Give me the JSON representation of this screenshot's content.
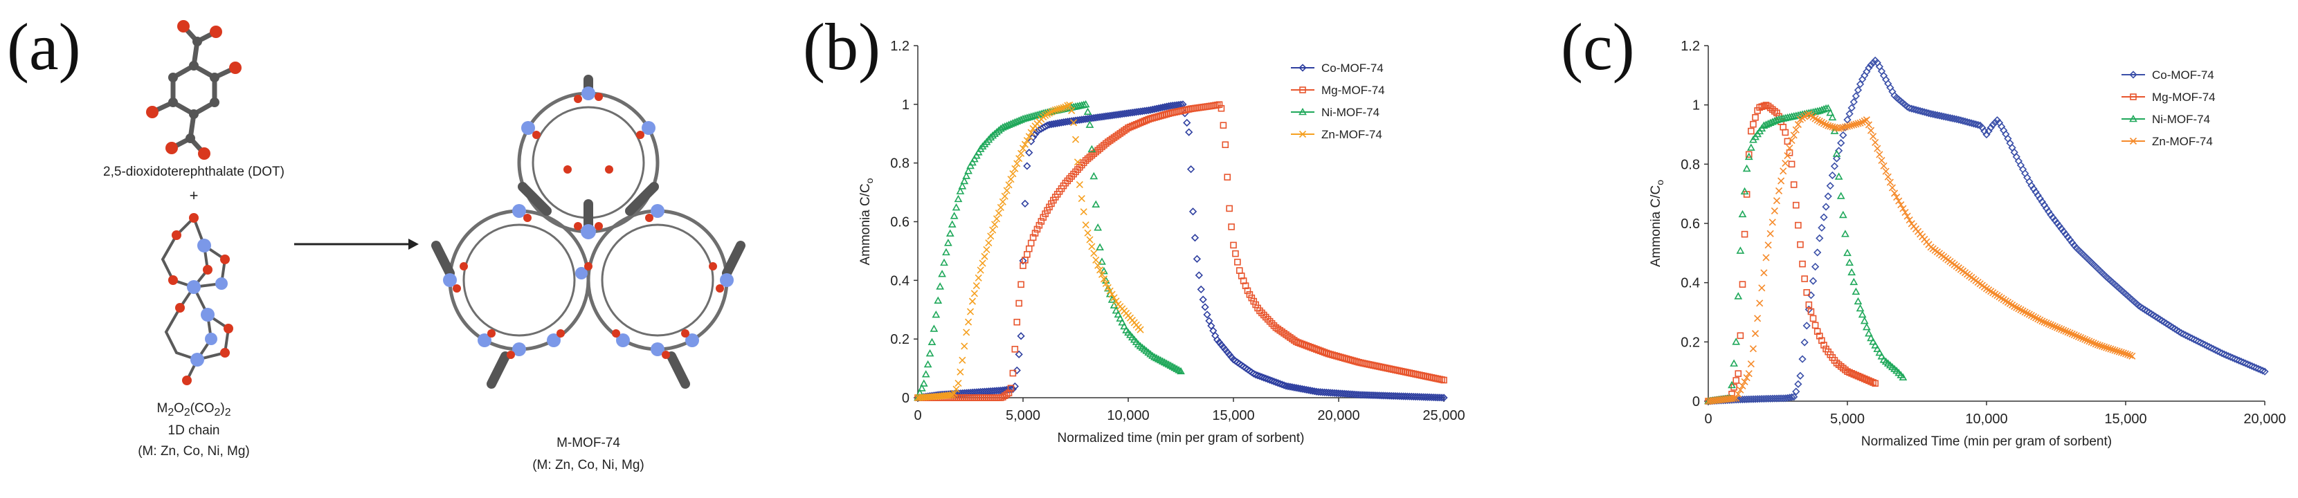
{
  "figure": {
    "panel_a": {
      "label": "(a)",
      "ligand_name": "2,5-dioxidoterephthalate (DOT)",
      "plus": "+",
      "chain_formula": "M2O2(CO2)2",
      "chain_formula_parts": {
        "m": "M",
        "s1": "2",
        "o": "O",
        "s2": "2",
        "co": "(CO",
        "s3": "2",
        "cl": ")",
        "s4": "2"
      },
      "chain_type": "1D chain",
      "chain_metals": "(M: Zn, Co, Ni, Mg)",
      "framework_name": "M-MOF-74",
      "framework_metals": "(M: Zn, Co, Ni, Mg)",
      "colors": {
        "oxygen": "#d9381e",
        "carbon": "#555555",
        "metal": "#7b98e8",
        "bond": "#5a5a5a"
      }
    },
    "panel_b": {
      "label": "(b)"
    },
    "panel_c": {
      "label": "(c)"
    }
  },
  "chart_data": [
    {
      "type": "line",
      "id": "b",
      "title": "",
      "xlabel": "Normalized time (min per gram of sorbent)",
      "ylabel": "Ammonia C/C",
      "ylabel_sub": "o",
      "xlim": [
        0,
        25000
      ],
      "ylim": [
        0,
        1.2
      ],
      "xticks": [
        0,
        5000,
        10000,
        15000,
        20000,
        25000
      ],
      "xtick_labels": [
        "0",
        "5,000",
        "10,000",
        "15,000",
        "20,000",
        "25,000"
      ],
      "yticks": [
        0,
        0.2,
        0.4,
        0.6,
        0.8,
        1,
        1.2
      ],
      "ytick_labels": [
        "0",
        "0.2",
        "0.4",
        "0.6",
        "0.8",
        "1",
        "1.2"
      ],
      "legend_position": "top-right",
      "series": [
        {
          "name": "Co-MOF-74",
          "color": "#2e3fa0",
          "marker": "diamond",
          "x": [
            0,
            1000,
            2000,
            3000,
            4000,
            4300,
            4600,
            4900,
            5050,
            5200,
            5400,
            5700,
            6200,
            7000,
            8000,
            9000,
            10000,
            11000,
            12000,
            12600,
            12900,
            13100,
            13300,
            13500,
            13800,
            14200,
            15000,
            16000,
            17500,
            19000,
            21000,
            23000,
            25000
          ],
          "y": [
            0,
            0.01,
            0.015,
            0.02,
            0.025,
            0.028,
            0.03,
            0.2,
            0.6,
            0.8,
            0.88,
            0.91,
            0.93,
            0.94,
            0.95,
            0.96,
            0.97,
            0.98,
            0.995,
            1.0,
            0.9,
            0.6,
            0.45,
            0.35,
            0.27,
            0.2,
            0.13,
            0.08,
            0.04,
            0.02,
            0.01,
            0.005,
            0.0
          ]
        },
        {
          "name": "Mg-MOF-74",
          "color": "#e8552d",
          "marker": "square",
          "x": [
            0,
            1000,
            2000,
            3000,
            4000,
            4400,
            4550,
            4700,
            5000,
            5500,
            6000,
            6500,
            7000,
            7500,
            8000,
            9000,
            10000,
            11000,
            12000,
            13000,
            14000,
            14400,
            14600,
            14800,
            15000,
            15300,
            15700,
            16200,
            17000,
            18000,
            19500,
            21000,
            23000,
            25000
          ],
          "y": [
            0,
            0,
            0,
            0,
            0,
            0.02,
            0.1,
            0.25,
            0.45,
            0.55,
            0.62,
            0.68,
            0.73,
            0.77,
            0.81,
            0.87,
            0.92,
            0.95,
            0.97,
            0.985,
            0.995,
            1.0,
            0.88,
            0.65,
            0.52,
            0.43,
            0.36,
            0.3,
            0.24,
            0.19,
            0.15,
            0.12,
            0.09,
            0.06
          ]
        },
        {
          "name": "Ni-MOF-74",
          "color": "#1fa85a",
          "marker": "triangle",
          "x": [
            0,
            300,
            500,
            700,
            900,
            1100,
            1300,
            1600,
            2000,
            2500,
            3000,
            3500,
            4000,
            5000,
            6000,
            7000,
            7700,
            8000,
            8150,
            8300,
            8500,
            8700,
            9000,
            9400,
            9900,
            10500,
            11200,
            12000,
            12500
          ],
          "y": [
            0,
            0.05,
            0.12,
            0.2,
            0.3,
            0.4,
            0.48,
            0.58,
            0.7,
            0.79,
            0.85,
            0.89,
            0.92,
            0.95,
            0.97,
            0.985,
            0.995,
            1.0,
            0.95,
            0.82,
            0.62,
            0.48,
            0.38,
            0.3,
            0.23,
            0.18,
            0.14,
            0.11,
            0.09
          ]
        },
        {
          "name": "Zn-MOF-74",
          "color": "#f5a020",
          "marker": "x",
          "x": [
            0,
            1000,
            1700,
            1900,
            2100,
            2300,
            2600,
            3000,
            3500,
            4000,
            4500,
            5000,
            5500,
            6000,
            6500,
            7000,
            7200,
            7350,
            7500,
            7700,
            8000,
            8500,
            9000,
            9500,
            10000,
            10600
          ],
          "y": [
            0,
            0.005,
            0.01,
            0.04,
            0.12,
            0.22,
            0.33,
            0.44,
            0.56,
            0.66,
            0.76,
            0.85,
            0.92,
            0.96,
            0.98,
            0.99,
            1.0,
            0.97,
            0.88,
            0.72,
            0.58,
            0.46,
            0.38,
            0.32,
            0.28,
            0.23
          ]
        }
      ]
    },
    {
      "type": "line",
      "id": "c",
      "title": "",
      "xlabel": "Normalized Time (min per gram of sorbent)",
      "ylabel": "Ammonia C/C",
      "ylabel_sub": "o",
      "xlim": [
        0,
        20000
      ],
      "ylim": [
        0,
        1.2
      ],
      "xticks": [
        0,
        5000,
        10000,
        15000,
        20000
      ],
      "xtick_labels": [
        "0",
        "5,000",
        "10,000",
        "15,000",
        "20,000"
      ],
      "yticks": [
        0,
        0.2,
        0.4,
        0.6,
        0.8,
        1,
        1.2
      ],
      "ytick_labels": [
        "0",
        "0.2",
        "0.4",
        "0.6",
        "0.8",
        "1",
        "1.2"
      ],
      "legend_position": "top-right",
      "series": [
        {
          "name": "Co-MOF-74",
          "color": "#3a4fa8",
          "marker": "diamond",
          "x": [
            0,
            1000,
            2000,
            2800,
            3100,
            3300,
            3600,
            4000,
            4500,
            5000,
            5500,
            5800,
            6000,
            6100,
            6300,
            6700,
            7200,
            8000,
            9000,
            9800,
            10000,
            10200,
            10400,
            10700,
            11100,
            11600,
            12300,
            13200,
            14300,
            15500,
            17000,
            18500,
            20000
          ],
          "y": [
            0,
            0.005,
            0.008,
            0.01,
            0.015,
            0.08,
            0.3,
            0.55,
            0.78,
            0.95,
            1.08,
            1.13,
            1.15,
            1.14,
            1.1,
            1.03,
            0.99,
            0.97,
            0.95,
            0.93,
            0.9,
            0.93,
            0.95,
            0.9,
            0.82,
            0.73,
            0.63,
            0.52,
            0.42,
            0.32,
            0.23,
            0.16,
            0.1
          ]
        },
        {
          "name": "Mg-MOF-74",
          "color": "#e8552d",
          "marker": "square",
          "x": [
            0,
            800,
            1100,
            1300,
            1500,
            1800,
            2100,
            2500,
            2800,
            3000,
            3200,
            3400,
            3600,
            3900,
            4200,
            4600,
            5000,
            5500,
            6000
          ],
          "y": [
            0,
            0.01,
            0.1,
            0.55,
            0.9,
            0.99,
            1.0,
            0.97,
            0.9,
            0.8,
            0.62,
            0.45,
            0.33,
            0.24,
            0.18,
            0.13,
            0.1,
            0.08,
            0.06
          ]
        },
        {
          "name": "Ni-MOF-74",
          "color": "#1fa85a",
          "marker": "triangle",
          "x": [
            0,
            800,
            1000,
            1200,
            1400,
            1600,
            2000,
            2500,
            3000,
            3500,
            4000,
            4300,
            4500,
            4700,
            5000,
            5400,
            5800,
            6300,
            6800,
            7000
          ],
          "y": [
            0,
            0.01,
            0.2,
            0.6,
            0.8,
            0.88,
            0.93,
            0.95,
            0.96,
            0.97,
            0.98,
            0.99,
            0.95,
            0.75,
            0.5,
            0.33,
            0.22,
            0.14,
            0.1,
            0.08
          ]
        },
        {
          "name": "Zn-MOF-74",
          "color": "#f58a2a",
          "marker": "x",
          "x": [
            0,
            1000,
            1500,
            1800,
            2100,
            2400,
            2700,
            3000,
            3300,
            3600,
            3900,
            4300,
            4700,
            5100,
            5500,
            5700,
            5900,
            6200,
            6700,
            7300,
            8000,
            9000,
            10000,
            11000,
            12000,
            13000,
            14000,
            15000,
            15300
          ],
          "y": [
            0,
            0.01,
            0.1,
            0.3,
            0.5,
            0.65,
            0.78,
            0.88,
            0.95,
            0.97,
            0.95,
            0.93,
            0.92,
            0.93,
            0.94,
            0.95,
            0.9,
            0.82,
            0.7,
            0.6,
            0.52,
            0.45,
            0.38,
            0.32,
            0.27,
            0.23,
            0.19,
            0.16,
            0.15
          ]
        }
      ]
    }
  ]
}
